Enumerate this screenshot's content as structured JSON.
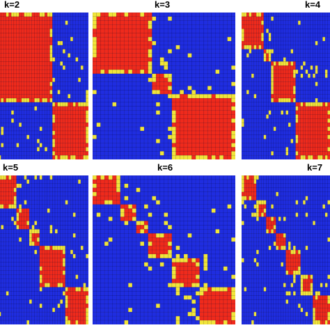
{
  "chart_data": [
    {
      "type": "heatmap",
      "title": "k=2",
      "n": 36,
      "blocks": [
        [
          0,
          22
        ],
        [
          22,
          36
        ]
      ],
      "colors": {
        "low": "#1f2de0",
        "mid": "#f1e53a",
        "high": "#ef2a1c"
      }
    },
    {
      "type": "heatmap",
      "title": "k=3",
      "n": 36,
      "blocks": [
        [
          0,
          15
        ],
        [
          15,
          20
        ],
        [
          20,
          36
        ]
      ],
      "colors": {
        "low": "#1f2de0",
        "mid": "#f1e53a",
        "high": "#ef2a1c"
      }
    },
    {
      "type": "heatmap",
      "title": "k=4",
      "n": 36,
      "blocks": [
        [
          0,
          9
        ],
        [
          9,
          12
        ],
        [
          12,
          22
        ],
        [
          22,
          36
        ]
      ],
      "colors": {
        "low": "#1f2de0",
        "mid": "#f1e53a",
        "high": "#ef2a1c"
      }
    },
    {
      "type": "heatmap",
      "title": "k=5",
      "n": 36,
      "blocks": [
        [
          0,
          8
        ],
        [
          8,
          13
        ],
        [
          13,
          17
        ],
        [
          17,
          27
        ],
        [
          27,
          36
        ]
      ],
      "colors": {
        "low": "#1f2de0",
        "mid": "#f1e53a",
        "high": "#ef2a1c"
      }
    },
    {
      "type": "heatmap",
      "title": "k=6",
      "n": 36,
      "blocks": [
        [
          0,
          7
        ],
        [
          7,
          11
        ],
        [
          11,
          14
        ],
        [
          14,
          20
        ],
        [
          20,
          27
        ],
        [
          27,
          36
        ]
      ],
      "colors": {
        "low": "#1f2de0",
        "mid": "#f1e53a",
        "high": "#ef2a1c"
      }
    },
    {
      "type": "heatmap",
      "title": "k=7",
      "n": 36,
      "blocks": [
        [
          0,
          6
        ],
        [
          6,
          10
        ],
        [
          10,
          14
        ],
        [
          14,
          18
        ],
        [
          18,
          24
        ],
        [
          24,
          29
        ],
        [
          29,
          36
        ]
      ],
      "colors": {
        "low": "#1f2de0",
        "mid": "#f1e53a",
        "high": "#ef2a1c"
      }
    }
  ]
}
